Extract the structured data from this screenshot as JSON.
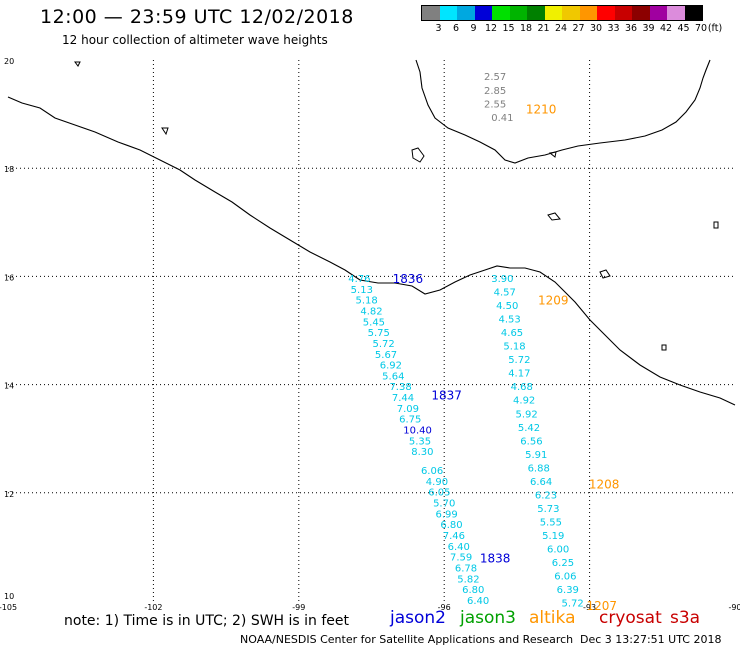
{
  "header": {
    "title": "12:00 — 23:59 UTC 12/02/2018",
    "subtitle": "12 hour collection of altimeter wave heights"
  },
  "legend": {
    "unit": "(ft)",
    "bins": [
      {
        "label": "3",
        "color": "#808080"
      },
      {
        "label": "6",
        "color": "#00e5ff"
      },
      {
        "label": "9",
        "color": "#00a8e0"
      },
      {
        "label": "12",
        "color": "#0000d8"
      },
      {
        "label": "15",
        "color": "#00e000"
      },
      {
        "label": "18",
        "color": "#00b400"
      },
      {
        "label": "21",
        "color": "#008000"
      },
      {
        "label": "24",
        "color": "#f0f000"
      },
      {
        "label": "27",
        "color": "#f0c800"
      },
      {
        "label": "30",
        "color": "#ff9600"
      },
      {
        "label": "33",
        "color": "#ff0000"
      },
      {
        "label": "36",
        "color": "#c80000"
      },
      {
        "label": "39",
        "color": "#8c0000"
      },
      {
        "label": "42",
        "color": "#a000a0"
      },
      {
        "label": "45",
        "color": "#dc8cdc"
      },
      {
        "label": "70",
        "color": "#000000"
      }
    ]
  },
  "map": {
    "lon_min": -105,
    "lon_max": -90,
    "lat_min": 10,
    "lat_max": 20,
    "lon_ticks": [
      -105,
      -102,
      -99,
      -96,
      -93,
      -90
    ],
    "lat_ticks": [
      10,
      12,
      14,
      16,
      18,
      20
    ],
    "grid": true,
    "coast_color": "#000000"
  },
  "passes": [
    {
      "name": "1210",
      "satellite": "altika",
      "label_pos": [
        -94.0,
        19.1
      ],
      "values": [
        {
          "v": "2.57",
          "color": "#808080",
          "lon": -94.95,
          "lat": 19.7
        },
        {
          "v": "2.85",
          "color": "#808080",
          "lon": -94.95,
          "lat": 19.45
        },
        {
          "v": "2.55",
          "color": "#808080",
          "lon": -94.95,
          "lat": 19.2
        },
        {
          "v": "0.41",
          "color": "#808080",
          "lon": -94.8,
          "lat": 18.95
        }
      ]
    },
    {
      "name": "1836",
      "satellite": "jason2",
      "label_pos": [
        -96.75,
        15.97
      ],
      "values": [
        {
          "v": "4.76",
          "color": "#00c8e6",
          "lon": -97.75,
          "lat": 15.97
        },
        {
          "v": "5.13",
          "color": "#00c8e6",
          "lon": -97.7,
          "lat": 15.77
        },
        {
          "v": "5.18",
          "color": "#00c8e6",
          "lon": -97.6,
          "lat": 15.57
        },
        {
          "v": "4.82",
          "color": "#00c8e6",
          "lon": -97.5,
          "lat": 15.37
        },
        {
          "v": "5.45",
          "color": "#00c8e6",
          "lon": -97.45,
          "lat": 15.17
        },
        {
          "v": "5.75",
          "color": "#00c8e6",
          "lon": -97.35,
          "lat": 14.97
        },
        {
          "v": "5.72",
          "color": "#00c8e6",
          "lon": -97.25,
          "lat": 14.77
        },
        {
          "v": "5.67",
          "color": "#00c8e6",
          "lon": -97.2,
          "lat": 14.57
        },
        {
          "v": "6.92",
          "color": "#00c8e6",
          "lon": -97.1,
          "lat": 14.37
        },
        {
          "v": "5.64",
          "color": "#00c8e6",
          "lon": -97.05,
          "lat": 14.17
        }
      ]
    },
    {
      "name": "1837",
      "satellite": "jason2",
      "label_pos": [
        -95.95,
        13.82
      ],
      "values": [
        {
          "v": "7.38",
          "color": "#00c8e6",
          "lon": -96.9,
          "lat": 13.97
        },
        {
          "v": "7.44",
          "color": "#00c8e6",
          "lon": -96.85,
          "lat": 13.77
        },
        {
          "v": "7.09",
          "color": "#00c8e6",
          "lon": -96.75,
          "lat": 13.57
        },
        {
          "v": "6.75",
          "color": "#00c8e6",
          "lon": -96.7,
          "lat": 13.37
        },
        {
          "v": "10.40",
          "color": "#0000d8",
          "lon": -96.55,
          "lat": 13.17
        },
        {
          "v": "5.35",
          "color": "#00c8e6",
          "lon": -96.5,
          "lat": 12.97
        },
        {
          "v": "8.30",
          "color": "#00c8e6",
          "lon": -96.45,
          "lat": 12.77
        },
        {
          "v": "6.06",
          "color": "#00c8e6",
          "lon": -96.25,
          "lat": 12.42
        },
        {
          "v": "4.90",
          "color": "#00c8e6",
          "lon": -96.15,
          "lat": 12.22
        },
        {
          "v": "6.05",
          "color": "#00c8e6",
          "lon": -96.1,
          "lat": 12.02
        },
        {
          "v": "5.70",
          "color": "#00c8e6",
          "lon": -96.0,
          "lat": 11.82
        },
        {
          "v": "6.99",
          "color": "#00c8e6",
          "lon": -95.95,
          "lat": 11.62
        },
        {
          "v": "6.80",
          "color": "#00c8e6",
          "lon": -95.85,
          "lat": 11.42
        }
      ]
    },
    {
      "name": "1838",
      "satellite": "jason2",
      "label_pos": [
        -94.95,
        10.8
      ],
      "values": [
        {
          "v": "7.46",
          "color": "#00c8e6",
          "lon": -95.8,
          "lat": 11.22
        },
        {
          "v": "6.40",
          "color": "#00c8e6",
          "lon": -95.7,
          "lat": 11.02
        },
        {
          "v": "7.59",
          "color": "#00c8e6",
          "lon": -95.65,
          "lat": 10.82
        },
        {
          "v": "6.78",
          "color": "#00c8e6",
          "lon": -95.55,
          "lat": 10.62
        },
        {
          "v": "5.82",
          "color": "#00c8e6",
          "lon": -95.5,
          "lat": 10.42
        },
        {
          "v": "6.80",
          "color": "#00c8e6",
          "lon": -95.4,
          "lat": 10.22
        },
        {
          "v": "6.40",
          "color": "#00c8e6",
          "lon": -95.3,
          "lat": 10.02
        }
      ]
    },
    {
      "name": "1209",
      "satellite": "altika",
      "label_pos": [
        -93.75,
        15.57
      ],
      "values": [
        {
          "v": "3.90",
          "color": "#00c8e6",
          "lon": -94.8,
          "lat": 15.97
        },
        {
          "v": "4.57",
          "color": "#00c8e6",
          "lon": -94.75,
          "lat": 15.72
        },
        {
          "v": "4.50",
          "color": "#00c8e6",
          "lon": -94.7,
          "lat": 15.47
        },
        {
          "v": "4.53",
          "color": "#00c8e6",
          "lon": -94.65,
          "lat": 15.22
        },
        {
          "v": "4.65",
          "color": "#00c8e6",
          "lon": -94.6,
          "lat": 14.97
        },
        {
          "v": "5.18",
          "color": "#00c8e6",
          "lon": -94.55,
          "lat": 14.72
        },
        {
          "v": "5.72",
          "color": "#00c8e6",
          "lon": -94.45,
          "lat": 14.47
        },
        {
          "v": "4.17",
          "color": "#00c8e6",
          "lon": -94.45,
          "lat": 14.22
        },
        {
          "v": "4.68",
          "color": "#00c8e6",
          "lon": -94.4,
          "lat": 13.97
        },
        {
          "v": "4.92",
          "color": "#00c8e6",
          "lon": -94.35,
          "lat": 13.72
        },
        {
          "v": "5.92",
          "color": "#00c8e6",
          "lon": -94.3,
          "lat": 13.47
        },
        {
          "v": "5.42",
          "color": "#00c8e6",
          "lon": -94.25,
          "lat": 13.22
        },
        {
          "v": "6.56",
          "color": "#00c8e6",
          "lon": -94.2,
          "lat": 12.97
        },
        {
          "v": "5.91",
          "color": "#00c8e6",
          "lon": -94.1,
          "lat": 12.72
        },
        {
          "v": "6.88",
          "color": "#00c8e6",
          "lon": -94.05,
          "lat": 12.47
        }
      ]
    },
    {
      "name": "1208",
      "satellite": "altika",
      "label_pos": [
        -92.7,
        12.17
      ],
      "values": [
        {
          "v": "6.64",
          "color": "#00c8e6",
          "lon": -94.0,
          "lat": 12.22
        },
        {
          "v": "6.23",
          "color": "#00c8e6",
          "lon": -93.9,
          "lat": 11.97
        },
        {
          "v": "5.73",
          "color": "#00c8e6",
          "lon": -93.85,
          "lat": 11.72
        },
        {
          "v": "5.55",
          "color": "#00c8e6",
          "lon": -93.8,
          "lat": 11.47
        },
        {
          "v": "5.19",
          "color": "#00c8e6",
          "lon": -93.75,
          "lat": 11.22
        },
        {
          "v": "6.00",
          "color": "#00c8e6",
          "lon": -93.65,
          "lat": 10.97
        },
        {
          "v": "6.25",
          "color": "#00c8e6",
          "lon": -93.55,
          "lat": 10.72
        },
        {
          "v": "6.06",
          "color": "#00c8e6",
          "lon": -93.5,
          "lat": 10.47
        },
        {
          "v": "6.39",
          "color": "#00c8e6",
          "lon": -93.45,
          "lat": 10.22
        },
        {
          "v": "5.72",
          "color": "#00c8e6",
          "lon": -93.35,
          "lat": 9.97
        }
      ]
    },
    {
      "name": "1207",
      "satellite": "altika",
      "label_pos": [
        -92.75,
        9.93
      ],
      "values": []
    }
  ],
  "satellites": [
    {
      "name": "jason2",
      "color": "#0000d8"
    },
    {
      "name": "jason3",
      "color": "#00a000"
    },
    {
      "name": "altika",
      "color": "#ff9600"
    },
    {
      "name": "cryosat",
      "color": "#c80000"
    },
    {
      "name": "s3a",
      "color": "#c80000"
    }
  ],
  "footer": {
    "note": "note:  1) Time is in UTC;  2) SWH is in feet",
    "credit": "NOAA/NESDIS Center for Satellite Applications and Research",
    "stamp": "Dec  3 13:27:51 UTC 2018"
  }
}
